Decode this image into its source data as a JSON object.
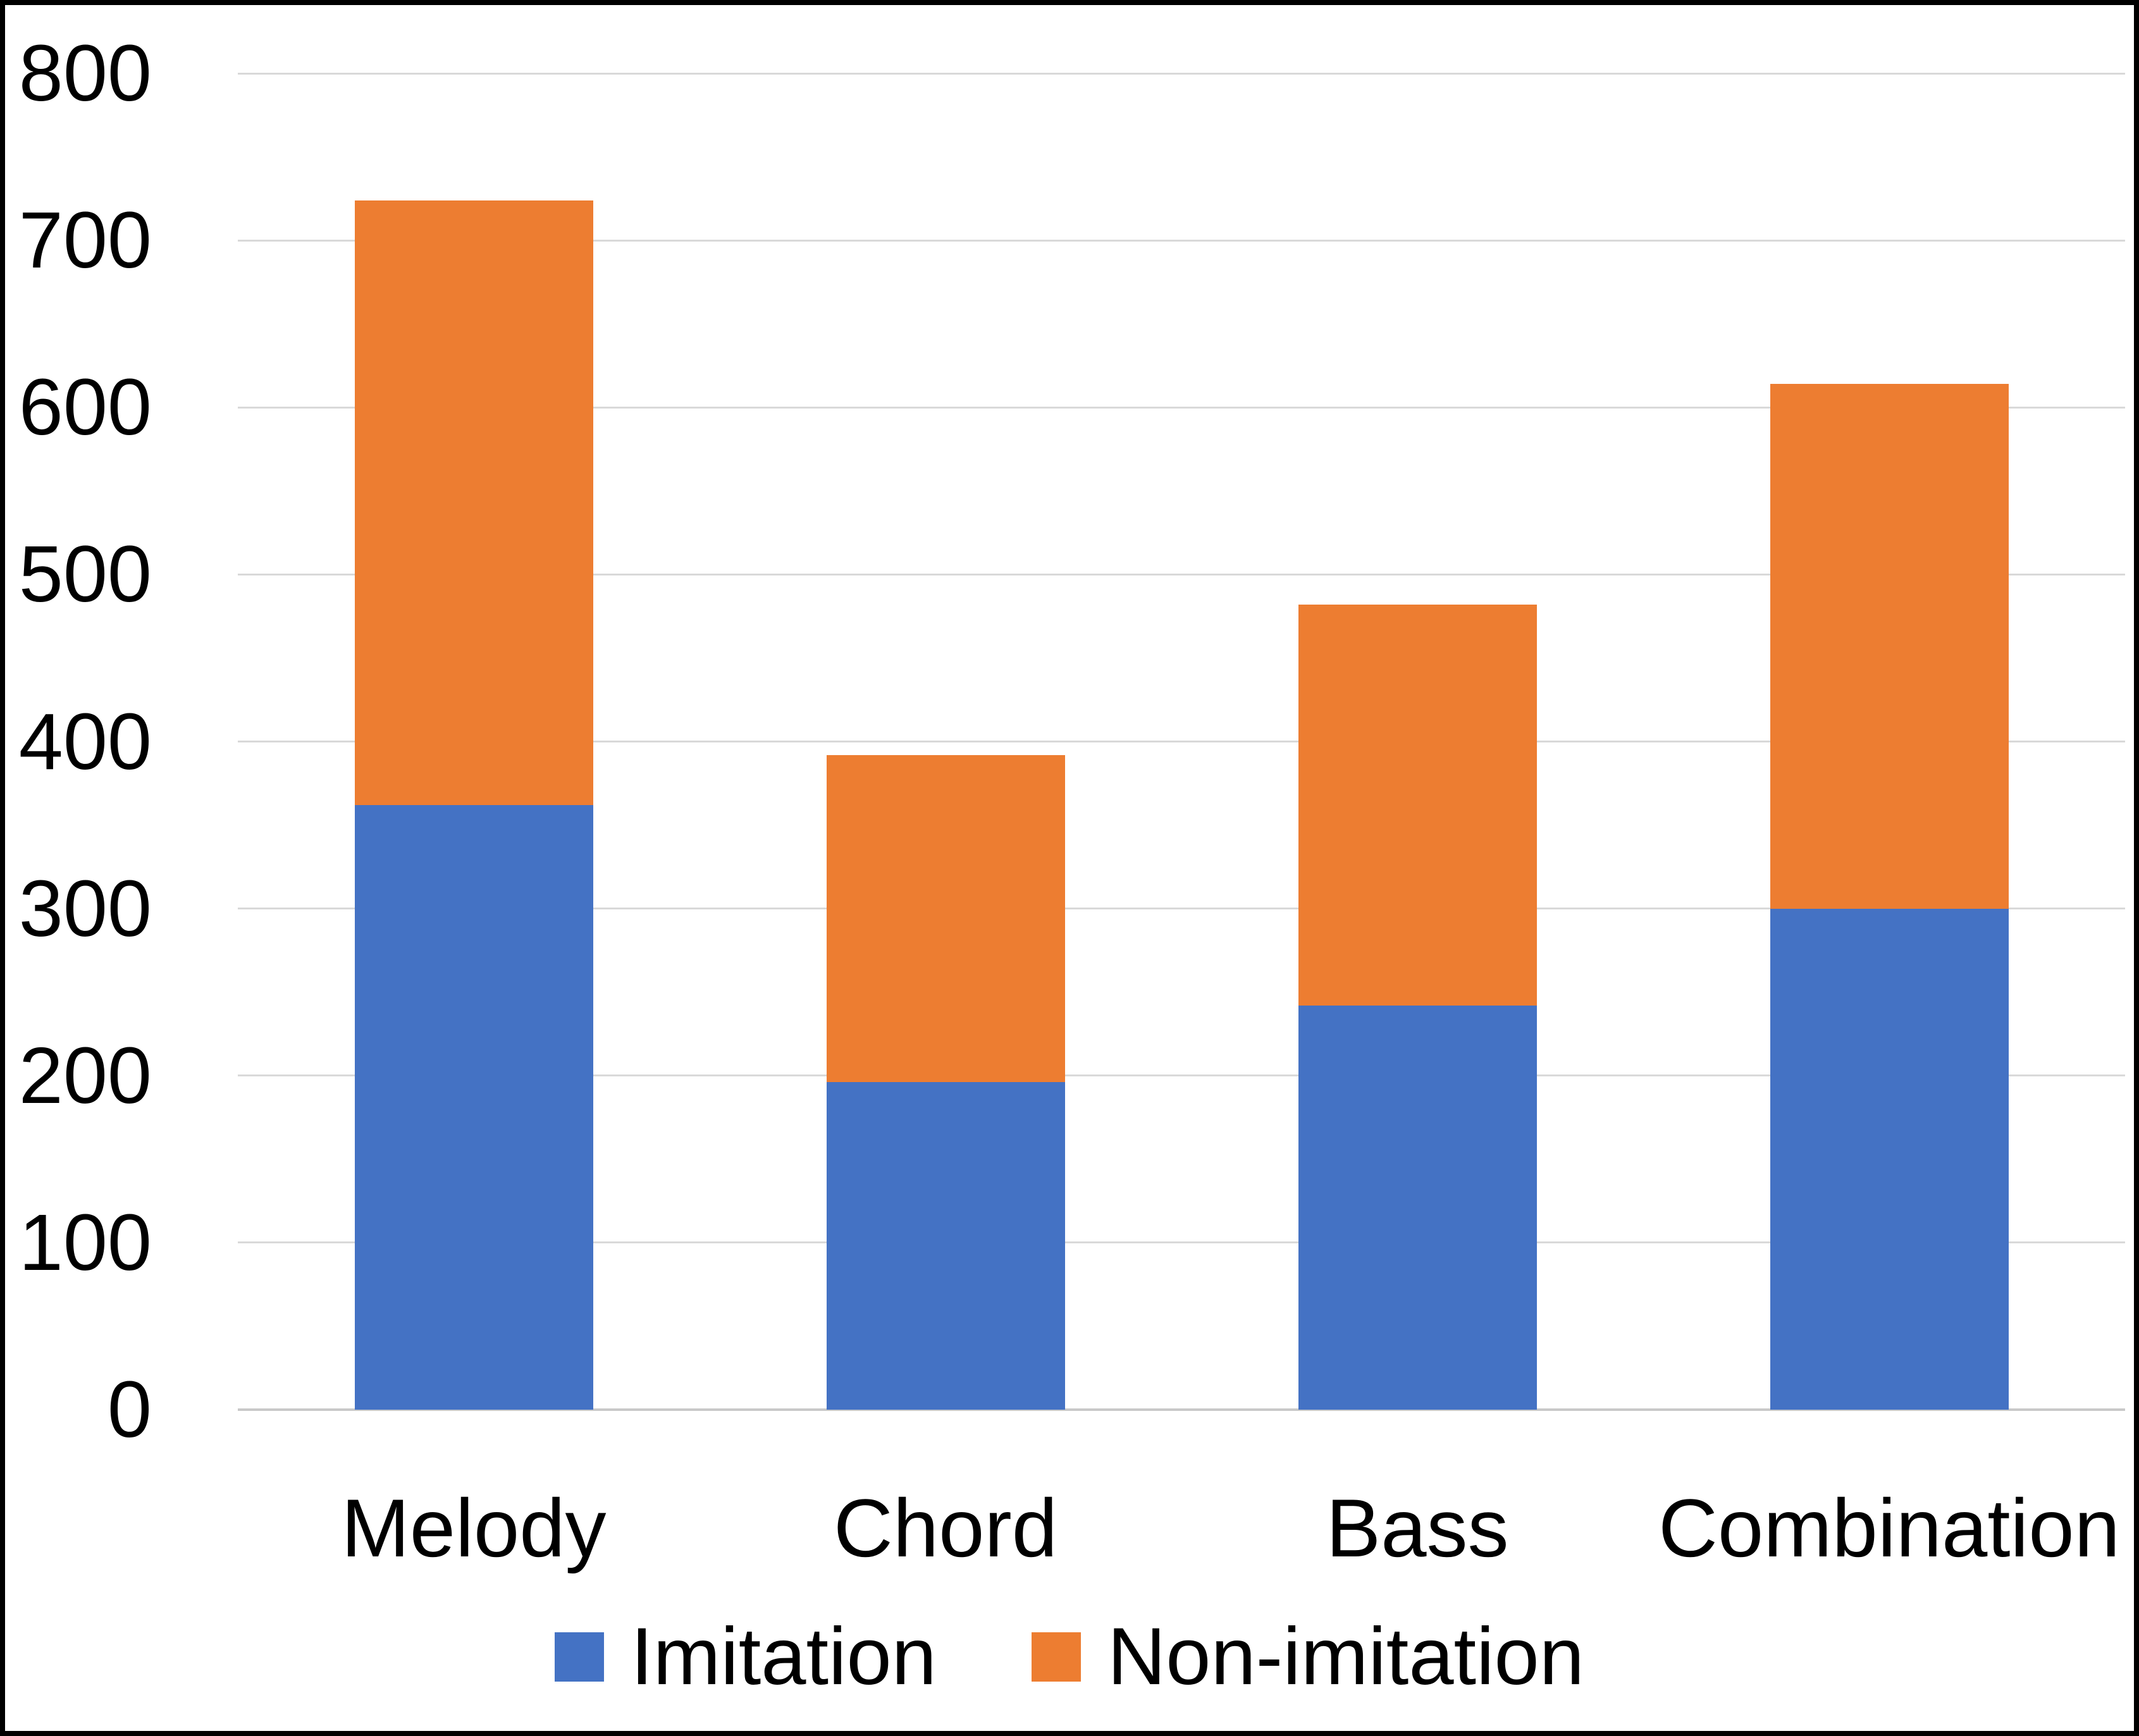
{
  "chart_data": {
    "type": "bar",
    "stacked": true,
    "title": "",
    "xlabel": "",
    "ylabel": "",
    "categories": [
      "Melody",
      "Chord",
      "Bass",
      "Combination"
    ],
    "series": [
      {
        "name": "Imitation",
        "color": "#4472C4",
        "values": [
          362,
          196,
          242,
          300
        ]
      },
      {
        "name": "Non-imitation",
        "color": "#ED7D31",
        "values": [
          362,
          196,
          240,
          314
        ]
      }
    ],
    "stack_totals": [
      724,
      392,
      482,
      614
    ],
    "ylim": [
      0,
      800
    ],
    "yticks": [
      0,
      100,
      200,
      300,
      400,
      500,
      600,
      700,
      800
    ],
    "grid": true,
    "gridline_color": "#D9D9D9",
    "zero_line_color": "#C9C9C9",
    "text_color": "#000000",
    "background_color": "#FFFFFF",
    "border_color": "#000000",
    "legend_position": "bottom",
    "legend_labels": [
      "Imitation",
      "Non-imitation"
    ]
  }
}
